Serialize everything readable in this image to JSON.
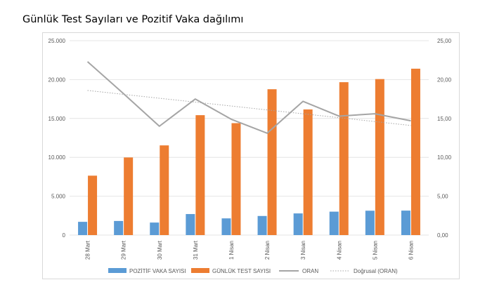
{
  "page": {
    "title": "Günlük Test Sayıları ve Pozitif Vaka dağılımı"
  },
  "colors": {
    "blue": "#5b9bd5",
    "orange": "#ed7d31",
    "gray": "#a5a5a5",
    "trend": "#a5a5a5",
    "grid": "#e4e4e4",
    "text": "#595959"
  },
  "chart_data": {
    "type": "bar",
    "categories": [
      "28 Mart",
      "29 Mart",
      "30 Mart",
      "31 Mart",
      "1 Nisan",
      "2 Nisan",
      "3 Nisan",
      "4 Nisan",
      "5 Nisan",
      "6 Nisan"
    ],
    "series": [
      {
        "name": "POZİTİF VAKA SAYISI",
        "type": "bar",
        "axis": "left",
        "values": [
          1704,
          1815,
          1610,
          2704,
          2148,
          2456,
          2786,
          3013,
          3135,
          3148
        ]
      },
      {
        "name": "GÜNLÜK TEST SAYISI",
        "type": "bar",
        "axis": "left",
        "values": [
          7641,
          9982,
          11535,
          15422,
          14396,
          18757,
          16160,
          19664,
          20065,
          21400
        ]
      },
      {
        "name": "ORAN",
        "type": "line",
        "axis": "right",
        "values": [
          22.3,
          18.2,
          14.0,
          17.5,
          14.9,
          13.1,
          17.2,
          15.3,
          15.6,
          14.7
        ]
      },
      {
        "name": "Doğrusal (ORAN)",
        "type": "trendline",
        "axis": "right",
        "values": [
          18.6,
          18.1,
          17.6,
          17.1,
          16.6,
          16.1,
          15.6,
          15.1,
          14.6,
          14.1
        ]
      }
    ],
    "y_left": {
      "min": 0,
      "max": 25000,
      "ticks": [
        0,
        5000,
        10000,
        15000,
        20000,
        25000
      ],
      "tick_labels": [
        "0",
        "5.000",
        "10.000",
        "15.000",
        "20.000",
        "25.000"
      ]
    },
    "y_right": {
      "min": 0,
      "max": 25,
      "ticks": [
        0,
        5,
        10,
        15,
        20,
        25
      ],
      "tick_labels": [
        "0,00",
        "5,00",
        "10,00",
        "15,00",
        "20,00",
        "25,00"
      ]
    },
    "grid": true,
    "legend_position": "bottom"
  }
}
